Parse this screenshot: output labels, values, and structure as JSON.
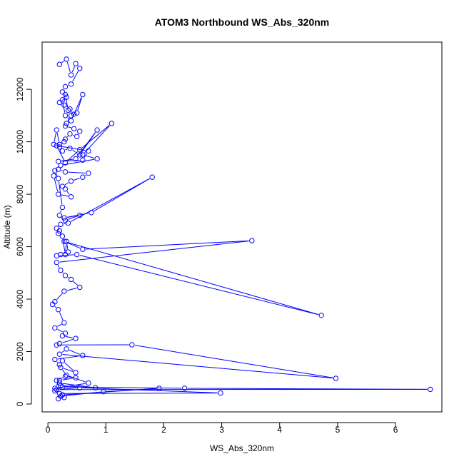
{
  "chart_data": {
    "type": "line",
    "title": "ATOM3 Northbound WS_Abs_320nm",
    "xlabel": "WS_Abs_320nm",
    "ylabel": "Altitude (m)",
    "xlim": [
      -0.1,
      6.8
    ],
    "ylim": [
      -300,
      13800
    ],
    "xticks": [
      0,
      1,
      2,
      3,
      4,
      5,
      6
    ],
    "yticks": [
      0,
      2000,
      4000,
      6000,
      8000,
      10000,
      12000
    ],
    "series_color": "#0000ff",
    "marker": "open-circle",
    "series": [
      {
        "x": [
          0.2,
          0.32,
          0.4,
          0.48,
          0.55,
          0.4,
          0.3,
          0.25,
          0.32,
          0.2,
          0.28,
          0.38,
          0.45,
          0.35,
          0.3,
          0.25,
          0.3,
          0.4,
          0.6,
          0.5,
          0.4,
          0.32,
          0.3,
          0.45,
          0.55,
          0.5,
          0.38,
          0.3,
          0.28,
          0.2,
          0.15,
          0.1,
          0.2,
          0.25,
          0.38,
          0.55,
          0.85,
          0.48,
          0.18,
          0.6,
          0.7,
          0.15,
          0.3,
          0.55,
          1.1,
          0.6,
          0.85,
          0.22,
          0.18,
          0.3,
          0.7,
          0.6,
          0.4,
          0.25,
          0.3,
          0.4,
          0.18,
          0.1,
          0.12,
          0.18,
          0.25,
          0.2,
          0.3,
          0.55,
          0.28,
          0.75,
          1.8,
          0.35,
          0.22,
          0.15,
          0.18,
          0.2,
          0.25,
          0.3,
          0.32,
          0.35,
          0.22,
          0.15,
          0.5,
          4.72,
          0.28,
          0.6,
          3.52,
          0.15,
          0.22,
          0.3,
          0.4,
          0.55,
          0.28,
          0.12,
          0.08,
          0.18,
          0.28,
          0.12,
          0.3,
          0.25,
          0.48,
          0.2,
          0.15,
          1.45,
          4.97,
          0.2,
          0.32,
          0.6,
          0.12,
          0.2,
          0.25,
          0.48,
          0.22,
          0.32,
          0.7,
          0.12,
          0.2,
          0.48,
          0.3,
          0.15,
          0.2,
          0.82,
          0.22,
          0.12,
          0.25,
          2.36,
          6.6,
          0.15,
          0.55,
          2.98,
          0.2,
          0.25,
          1.92,
          0.96,
          0.22,
          0.28,
          0.18
        ],
        "y": [
          12950,
          13150,
          12550,
          12980,
          12800,
          12200,
          12100,
          11900,
          11700,
          11500,
          11400,
          11250,
          11050,
          11200,
          11800,
          11600,
          11000,
          10800,
          11800,
          11100,
          11000,
          10700,
          10600,
          10500,
          10400,
          10200,
          10300,
          10100,
          10000,
          9900,
          10450,
          9900,
          9800,
          9650,
          9750,
          9500,
          10450,
          9350,
          9250,
          9300,
          9650,
          9850,
          9200,
          9700,
          10700,
          9500,
          9350,
          9100,
          8950,
          8850,
          8800,
          8650,
          8500,
          8300,
          8200,
          7900,
          8000,
          8700,
          8900,
          8600,
          7500,
          7200,
          7000,
          7200,
          7100,
          7300,
          8650,
          6900,
          6850,
          6700,
          6500,
          6600,
          6400,
          5700,
          6200,
          5800,
          5700,
          5650,
          5700,
          3380,
          6200,
          5900,
          6230,
          5400,
          5100,
          4900,
          4750,
          4450,
          4300,
          3900,
          3800,
          3600,
          3100,
          2900,
          2700,
          2600,
          2500,
          2300,
          2250,
          2260,
          980,
          1900,
          2100,
          1850,
          1700,
          1500,
          1650,
          1200,
          1400,
          1100,
          800,
          600,
          900,
          1000,
          1050,
          900,
          800,
          620,
          700,
          500,
          650,
          600,
          560,
          550,
          620,
          420,
          400,
          350,
          600,
          470,
          300,
          250,
          200
        ]
      }
    ]
  }
}
